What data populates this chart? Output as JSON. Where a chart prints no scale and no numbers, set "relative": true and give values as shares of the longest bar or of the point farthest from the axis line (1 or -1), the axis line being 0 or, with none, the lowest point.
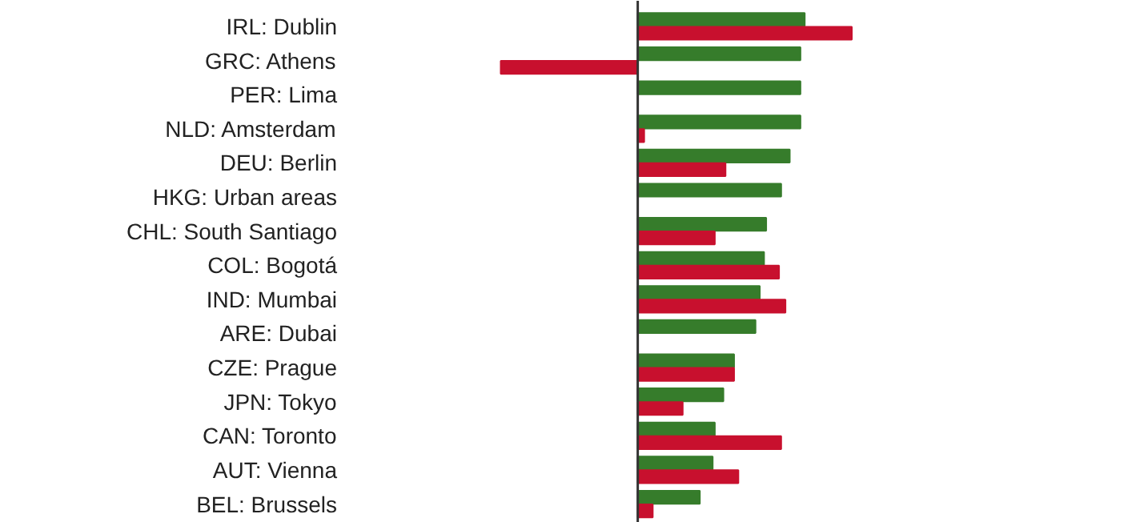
{
  "chart_data": {
    "type": "bar",
    "orientation": "horizontal",
    "relative": true,
    "categories": [
      "IRL: Dublin",
      "GRC: Athens",
      "PER: Lima",
      "NLD: Amsterdam",
      "DEU: Berlin",
      "HKG: Urban areas",
      "CHL: South Santiago",
      "COL: Bogotá",
      "IND: Mumbai",
      "ARE: Dubai",
      "CZE: Prague",
      "JPN: Tokyo",
      "CAN: Toronto",
      "AUT: Vienna",
      "BEL: Brussels"
    ],
    "series": [
      {
        "color": "#367c2b",
        "values": [
          0.78,
          0.76,
          0.76,
          0.76,
          0.71,
          0.67,
          0.6,
          0.59,
          0.57,
          0.55,
          0.45,
          0.4,
          0.36,
          0.35,
          0.29
        ]
      },
      {
        "color": "#c8102e",
        "values": [
          1,
          -0.64,
          null,
          0.03,
          0.41,
          null,
          0.36,
          0.66,
          0.69,
          null,
          0.45,
          0.21,
          0.67,
          0.47,
          0.07
        ]
      }
    ]
  }
}
